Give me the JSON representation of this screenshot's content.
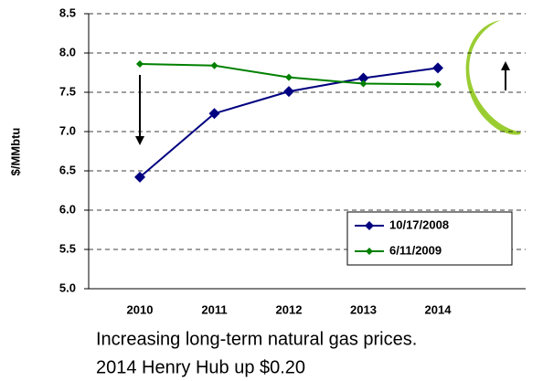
{
  "chart_data": {
    "type": "line",
    "ylabel": "$/MMbtu",
    "categories": [
      "2010",
      "2011",
      "2012",
      "2013",
      "2014"
    ],
    "series": [
      {
        "name": "10/17/2008",
        "color": "#000080",
        "values": [
          6.42,
          7.23,
          7.51,
          7.68,
          7.81
        ]
      },
      {
        "name": "6/11/2009",
        "color": "#008000",
        "values": [
          7.86,
          7.84,
          7.69,
          7.61,
          7.6
        ]
      }
    ],
    "ylim": [
      5.0,
      8.5
    ],
    "yticks": [
      {
        "value": 5,
        "label": "5.0"
      },
      {
        "value": 5.5,
        "label": "5.5"
      },
      {
        "value": 6,
        "label": "6.0"
      },
      {
        "value": 6.5,
        "label": "6.5"
      },
      {
        "value": 7,
        "label": "7.0"
      },
      {
        "value": 7.5,
        "label": "7.5"
      },
      {
        "value": 8,
        "label": "8.0"
      },
      {
        "value": 8.5,
        "label": "8.5"
      }
    ],
    "grid": true,
    "caption": [
      "Increasing long-term natural gas prices.",
      "2014 Henry Hub up $0.20"
    ]
  }
}
